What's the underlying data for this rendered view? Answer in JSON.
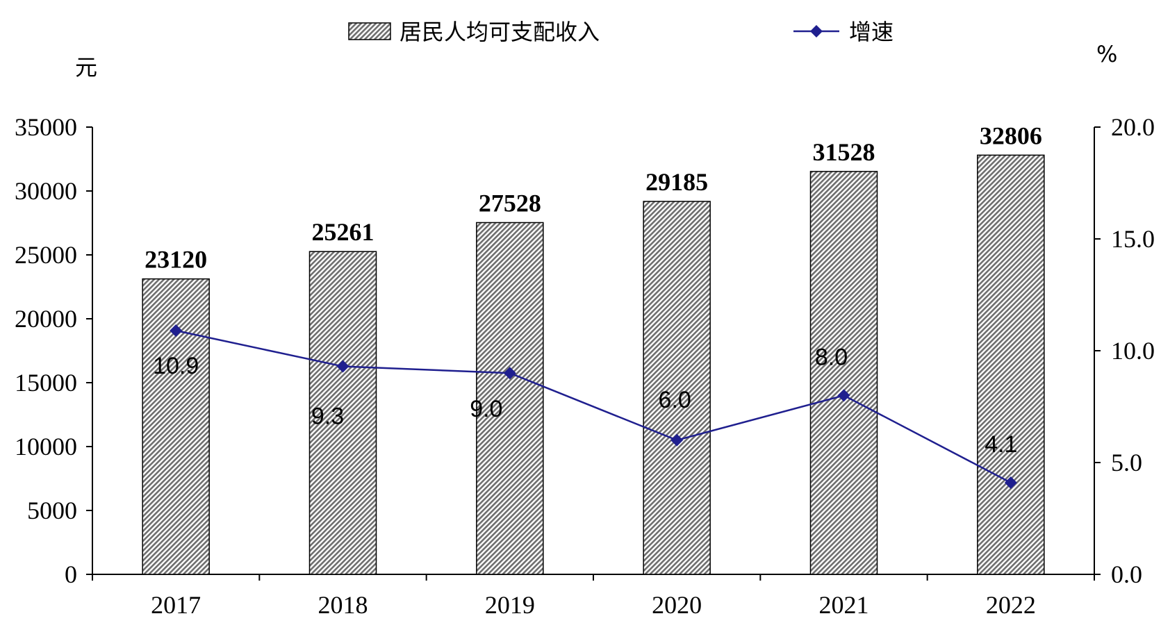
{
  "chart_data": {
    "type": "bar",
    "categories": [
      "2017",
      "2018",
      "2019",
      "2020",
      "2021",
      "2022"
    ],
    "series": [
      {
        "name": "居民人均可支配收入",
        "type": "bar",
        "axis": "left",
        "values": [
          23120,
          25261,
          27528,
          29185,
          31528,
          32806
        ],
        "color": "#8c8c8c"
      },
      {
        "name": "增速",
        "type": "line",
        "axis": "right",
        "values": [
          10.9,
          9.3,
          9.0,
          6.0,
          8.0,
          4.1
        ],
        "labels": [
          "10.9",
          "9.3",
          "9.0",
          "6.0",
          "8.0",
          "4.1"
        ],
        "color": "#1f1f8f"
      }
    ],
    "y_left": {
      "unit": "元",
      "ylim": [
        0,
        35000
      ],
      "ticks": [
        "0",
        "5000",
        "10000",
        "15000",
        "20000",
        "25000",
        "30000",
        "35000"
      ]
    },
    "y_right": {
      "unit": "%",
      "ylim": [
        0,
        20
      ],
      "ticks": [
        "0.0",
        "5.0",
        "10.0",
        "15.0",
        "20.0"
      ]
    },
    "grid": false,
    "legend": "top"
  }
}
